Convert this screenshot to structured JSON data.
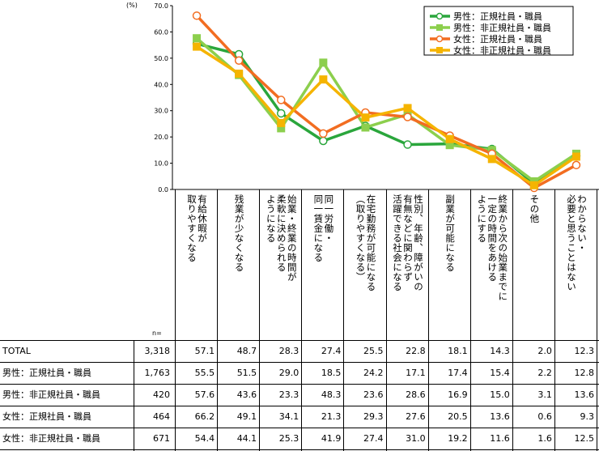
{
  "chart_data": {
    "type": "line",
    "y_unit": "(%)",
    "ylim": [
      0,
      70
    ],
    "yticks": [
      "0.0",
      "10.0",
      "20.0",
      "30.0",
      "40.0",
      "50.0",
      "60.0",
      "70.0"
    ],
    "grid": false,
    "legend_position": "top-right",
    "categories": [
      "有給休暇が\n取りやすくなる",
      "残業が少なくなる",
      "始業・終業の時間が\n柔軟に決められる\nようになる",
      "同一労働・\n同一賃金になる",
      "在宅勤務が可能になる\n（取りやすくなる）",
      "性別、年齢、障がいの\n有無などに関わらず\n活躍できる社会になる",
      "副業が可能になる",
      "終業から次の始業までに\n一定の時間をあける\nようにする",
      "その他",
      "わからない・\n必要と思うことはない"
    ],
    "series": [
      {
        "name": "男性：正規社員・職員",
        "color": "#2aa63c",
        "marker": "open-circle",
        "values": [
          55.5,
          51.5,
          29.0,
          18.5,
          24.2,
          17.1,
          17.4,
          15.4,
          2.2,
          12.8
        ]
      },
      {
        "name": "男性：非正規社員・職員",
        "color": "#8ccf4d",
        "marker": "square",
        "values": [
          57.6,
          43.6,
          23.3,
          48.3,
          23.6,
          28.6,
          16.9,
          15.0,
          3.1,
          13.6
        ]
      },
      {
        "name": "女性：正規社員・職員",
        "color": "#f26d21",
        "marker": "open-circle",
        "values": [
          66.2,
          49.1,
          34.1,
          21.3,
          29.3,
          27.6,
          20.5,
          13.6,
          0.6,
          9.3
        ]
      },
      {
        "name": "女性：非正規社員・職員",
        "color": "#f5b400",
        "marker": "square",
        "values": [
          54.4,
          44.1,
          25.3,
          41.9,
          27.4,
          31.0,
          19.2,
          11.6,
          1.6,
          12.5
        ]
      }
    ]
  },
  "table": {
    "n_header": "n=",
    "rows": [
      {
        "label": "TOTAL",
        "n": "3,318",
        "values": [
          "57.1",
          "48.7",
          "28.3",
          "27.4",
          "25.5",
          "22.8",
          "18.1",
          "14.3",
          "2.0",
          "12.3"
        ]
      },
      {
        "label": "男性：正規社員・職員",
        "n": "1,763",
        "values": [
          "55.5",
          "51.5",
          "29.0",
          "18.5",
          "24.2",
          "17.1",
          "17.4",
          "15.4",
          "2.2",
          "12.8"
        ]
      },
      {
        "label": "男性：非正規社員・職員",
        "n": "420",
        "values": [
          "57.6",
          "43.6",
          "23.3",
          "48.3",
          "23.6",
          "28.6",
          "16.9",
          "15.0",
          "3.1",
          "13.6"
        ]
      },
      {
        "label": "女性：正規社員・職員",
        "n": "464",
        "values": [
          "66.2",
          "49.1",
          "34.1",
          "21.3",
          "29.3",
          "27.6",
          "20.5",
          "13.6",
          "0.6",
          "9.3"
        ]
      },
      {
        "label": "女性：非正規社員・職員",
        "n": "671",
        "values": [
          "54.4",
          "44.1",
          "25.3",
          "41.9",
          "27.4",
          "31.0",
          "19.2",
          "11.6",
          "1.6",
          "12.5"
        ]
      }
    ]
  }
}
